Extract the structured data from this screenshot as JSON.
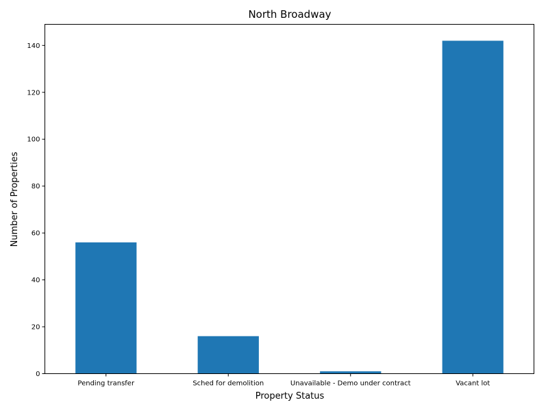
{
  "chart_data": {
    "type": "bar",
    "title": "North Broadway",
    "xlabel": "Property Status",
    "ylabel": "Number of Properties",
    "categories": [
      "Pending transfer",
      "Sched for demolition",
      "Unavailable - Demo under contract",
      "Vacant lot"
    ],
    "values": [
      56,
      16,
      1,
      142
    ],
    "ylim": [
      0,
      149
    ],
    "yticks": [
      0,
      20,
      40,
      60,
      80,
      100,
      120,
      140
    ],
    "ytick_labels": [
      "0",
      "20",
      "40",
      "60",
      "80",
      "100",
      "120",
      "140"
    ],
    "grid": false,
    "legend": "none",
    "bar_color": "#1f77b4"
  }
}
